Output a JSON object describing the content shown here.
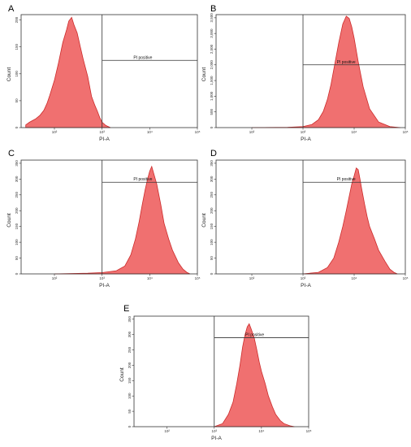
{
  "chart_data": [
    {
      "panel": "A",
      "type": "area",
      "xlabel": "PI-A",
      "ylabel": "Count",
      "xscale": "log",
      "xlim": [
        20,
        100000
      ],
      "ylim": [
        0,
        210
      ],
      "xticks": [
        "10²",
        "10³",
        "10⁴",
        "10⁵"
      ],
      "yticks": [
        "0",
        "50",
        "100",
        "150",
        "200"
      ],
      "gate": {
        "label": "PI positive",
        "x_threshold": 1000,
        "y_level": 125
      },
      "series": [
        {
          "x": [
            25,
            30,
            40,
            50,
            60,
            70,
            80,
            100,
            120,
            150,
            180,
            200,
            230,
            260,
            300,
            350,
            400,
            500,
            600,
            700,
            800,
            900,
            1000,
            1200,
            1500
          ],
          "y": [
            5,
            10,
            16,
            23,
            32,
            45,
            60,
            88,
            118,
            158,
            182,
            198,
            205,
            190,
            176,
            150,
            128,
            95,
            58,
            42,
            30,
            18,
            10,
            4,
            0
          ]
        }
      ]
    },
    {
      "panel": "B",
      "type": "area",
      "xlabel": "PI-A",
      "ylabel": "Count",
      "xscale": "log",
      "xlim": [
        20,
        100000
      ],
      "ylim": [
        0,
        3600
      ],
      "xticks": [
        "10²",
        "10³",
        "10⁴",
        "10⁵"
      ],
      "yticks": [
        "0",
        "500",
        "1,000",
        "1,500",
        "2,000",
        "2,500",
        "3,000",
        "3,500"
      ],
      "gate": {
        "label": "PI positive",
        "x_threshold": 1000,
        "y_level": 2000
      },
      "series": [
        {
          "x": [
            100,
            500,
            1000,
            1500,
            2000,
            2500,
            3000,
            3500,
            4000,
            5000,
            6000,
            7000,
            8000,
            9000,
            10000,
            12000,
            15000,
            20000,
            30000,
            50000,
            80000
          ],
          "y": [
            0,
            10,
            30,
            100,
            250,
            520,
            900,
            1350,
            1850,
            2700,
            3300,
            3550,
            3480,
            3200,
            2850,
            2100,
            1300,
            600,
            180,
            30,
            0
          ]
        }
      ]
    },
    {
      "panel": "C",
      "type": "area",
      "xlabel": "PI-A",
      "ylabel": "Count",
      "xscale": "log",
      "xlim": [
        20,
        100000
      ],
      "ylim": [
        0,
        360
      ],
      "xticks": [
        "10²",
        "10³",
        "10⁴",
        "10⁵"
      ],
      "yticks": [
        "0",
        "50",
        "100",
        "150",
        "200",
        "250",
        "300",
        "350"
      ],
      "gate": {
        "label": "PI positive",
        "x_threshold": 1000,
        "y_level": 290
      },
      "series": [
        {
          "x": [
            100,
            500,
            1000,
            2000,
            3000,
            4000,
            5000,
            6000,
            7000,
            8000,
            9000,
            10000,
            11000,
            12000,
            14000,
            17000,
            20000,
            25000,
            30000,
            40000,
            50000,
            60000,
            70000
          ],
          "y": [
            0,
            2,
            4,
            10,
            25,
            60,
            110,
            165,
            220,
            265,
            300,
            325,
            340,
            320,
            285,
            220,
            160,
            110,
            75,
            35,
            15,
            5,
            0
          ]
        }
      ]
    },
    {
      "panel": "D",
      "type": "area",
      "xlabel": "PI-A",
      "ylabel": "Count",
      "xscale": "log",
      "xlim": [
        20,
        100000
      ],
      "ylim": [
        0,
        360
      ],
      "xticks": [
        "10²",
        "10³",
        "10⁴",
        "10⁵"
      ],
      "yticks": [
        "0",
        "50",
        "100",
        "150",
        "200",
        "250",
        "300",
        "350"
      ],
      "gate": {
        "label": "PI positive",
        "x_threshold": 1000,
        "y_level": 290
      },
      "series": [
        {
          "x": [
            1000,
            2000,
            3000,
            4000,
            5000,
            6000,
            7000,
            8000,
            9000,
            10000,
            11000,
            12000,
            13000,
            14000,
            16000,
            18000,
            20000,
            25000,
            30000,
            40000,
            50000,
            60000,
            70000
          ],
          "y": [
            0,
            5,
            20,
            50,
            100,
            150,
            200,
            245,
            285,
            310,
            335,
            330,
            300,
            270,
            220,
            180,
            150,
            110,
            75,
            40,
            15,
            5,
            0
          ]
        }
      ]
    },
    {
      "panel": "E",
      "type": "area",
      "xlabel": "PI-A",
      "ylabel": "Count",
      "xscale": "log",
      "xlim": [
        20,
        100000
      ],
      "ylim": [
        0,
        360
      ],
      "xticks": [
        "10²",
        "10³",
        "10⁴",
        "10⁵"
      ],
      "yticks": [
        "0",
        "50",
        "100",
        "150",
        "200",
        "250",
        "300",
        "350"
      ],
      "gate": {
        "label": "PI positive",
        "x_threshold": 1000,
        "y_level": 290
      },
      "series": [
        {
          "x": [
            1000,
            1500,
            2000,
            2500,
            3000,
            3500,
            4000,
            4500,
            5000,
            5500,
            6000,
            7000,
            8000,
            9000,
            10000,
            12000,
            14000,
            17000,
            20000,
            25000,
            30000,
            40000,
            50000
          ],
          "y": [
            0,
            10,
            40,
            80,
            140,
            200,
            260,
            300,
            325,
            335,
            320,
            290,
            250,
            210,
            180,
            140,
            100,
            65,
            40,
            20,
            10,
            3,
            0
          ]
        }
      ]
    }
  ]
}
